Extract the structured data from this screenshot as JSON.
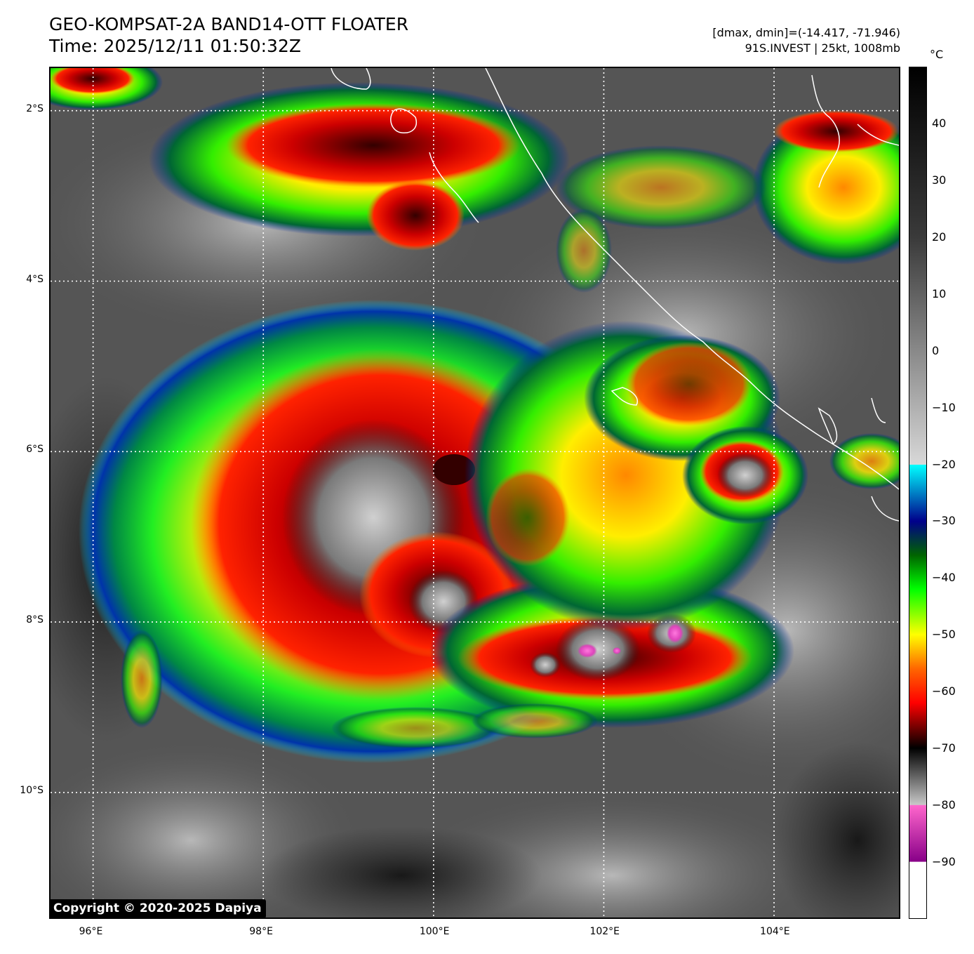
{
  "header": {
    "title_line1": "GEO-KOMPSAT-2A BAND14-OTT FLOATER",
    "title_line2": "Time: 2025/12/11 01:50:32Z",
    "info_line1": "[dmax, dmin]=(-14.417, -71.946)",
    "info_line2": "91S.INVEST | 25kt, 1008mb"
  },
  "map": {
    "lon_range": [
      95.5,
      105.5
    ],
    "lat_range": [
      -1.5,
      -11.5
    ],
    "lon_ticks": [
      {
        "value": 96,
        "label": "96°E"
      },
      {
        "value": 98,
        "label": "98°E"
      },
      {
        "value": 100,
        "label": "100°E"
      },
      {
        "value": 102,
        "label": "102°E"
      },
      {
        "value": 104,
        "label": "104°E"
      }
    ],
    "lat_ticks": [
      {
        "value": -2,
        "label": "2°S"
      },
      {
        "value": -4,
        "label": "4°S"
      },
      {
        "value": -6,
        "label": "6°S"
      },
      {
        "value": -8,
        "label": "8°S"
      },
      {
        "value": -10,
        "label": "10°S"
      }
    ],
    "gridlines": true,
    "coastline_color": "#ffffff",
    "copyright": "Copyright © 2020-2025 Dapiya"
  },
  "colorbar": {
    "unit": "°C",
    "range": [
      -100,
      50
    ],
    "ticks": [
      {
        "value": 40,
        "label": "40"
      },
      {
        "value": 30,
        "label": "30"
      },
      {
        "value": 20,
        "label": "20"
      },
      {
        "value": 10,
        "label": "10"
      },
      {
        "value": 0,
        "label": "0"
      },
      {
        "value": -10,
        "label": "−10"
      },
      {
        "value": -20,
        "label": "−20"
      },
      {
        "value": -30,
        "label": "−30"
      },
      {
        "value": -40,
        "label": "−40"
      },
      {
        "value": -50,
        "label": "−50"
      },
      {
        "value": -60,
        "label": "−60"
      },
      {
        "value": -70,
        "label": "−70"
      },
      {
        "value": -80,
        "label": "−80"
      },
      {
        "value": -90,
        "label": "−90"
      }
    ],
    "stops": [
      {
        "value": 50,
        "color": "#000000"
      },
      {
        "value": 20,
        "color": "#3a3a3a"
      },
      {
        "value": -20,
        "color": "#d8d8d8"
      },
      {
        "value": -20.1,
        "color": "#00ffff"
      },
      {
        "value": -30,
        "color": "#00008b"
      },
      {
        "value": -36,
        "color": "#006400"
      },
      {
        "value": -42,
        "color": "#00ff00"
      },
      {
        "value": -50,
        "color": "#ffff00"
      },
      {
        "value": -56,
        "color": "#ff6600"
      },
      {
        "value": -62,
        "color": "#ff0000"
      },
      {
        "value": -70,
        "color": "#000000"
      },
      {
        "value": -80,
        "color": "#c8c8c8"
      },
      {
        "value": -80.1,
        "color": "#ff66cc"
      },
      {
        "value": -90,
        "color": "#880088"
      },
      {
        "value": -90.1,
        "color": "#ffffff"
      },
      {
        "value": -100,
        "color": "#ffffff"
      }
    ]
  }
}
